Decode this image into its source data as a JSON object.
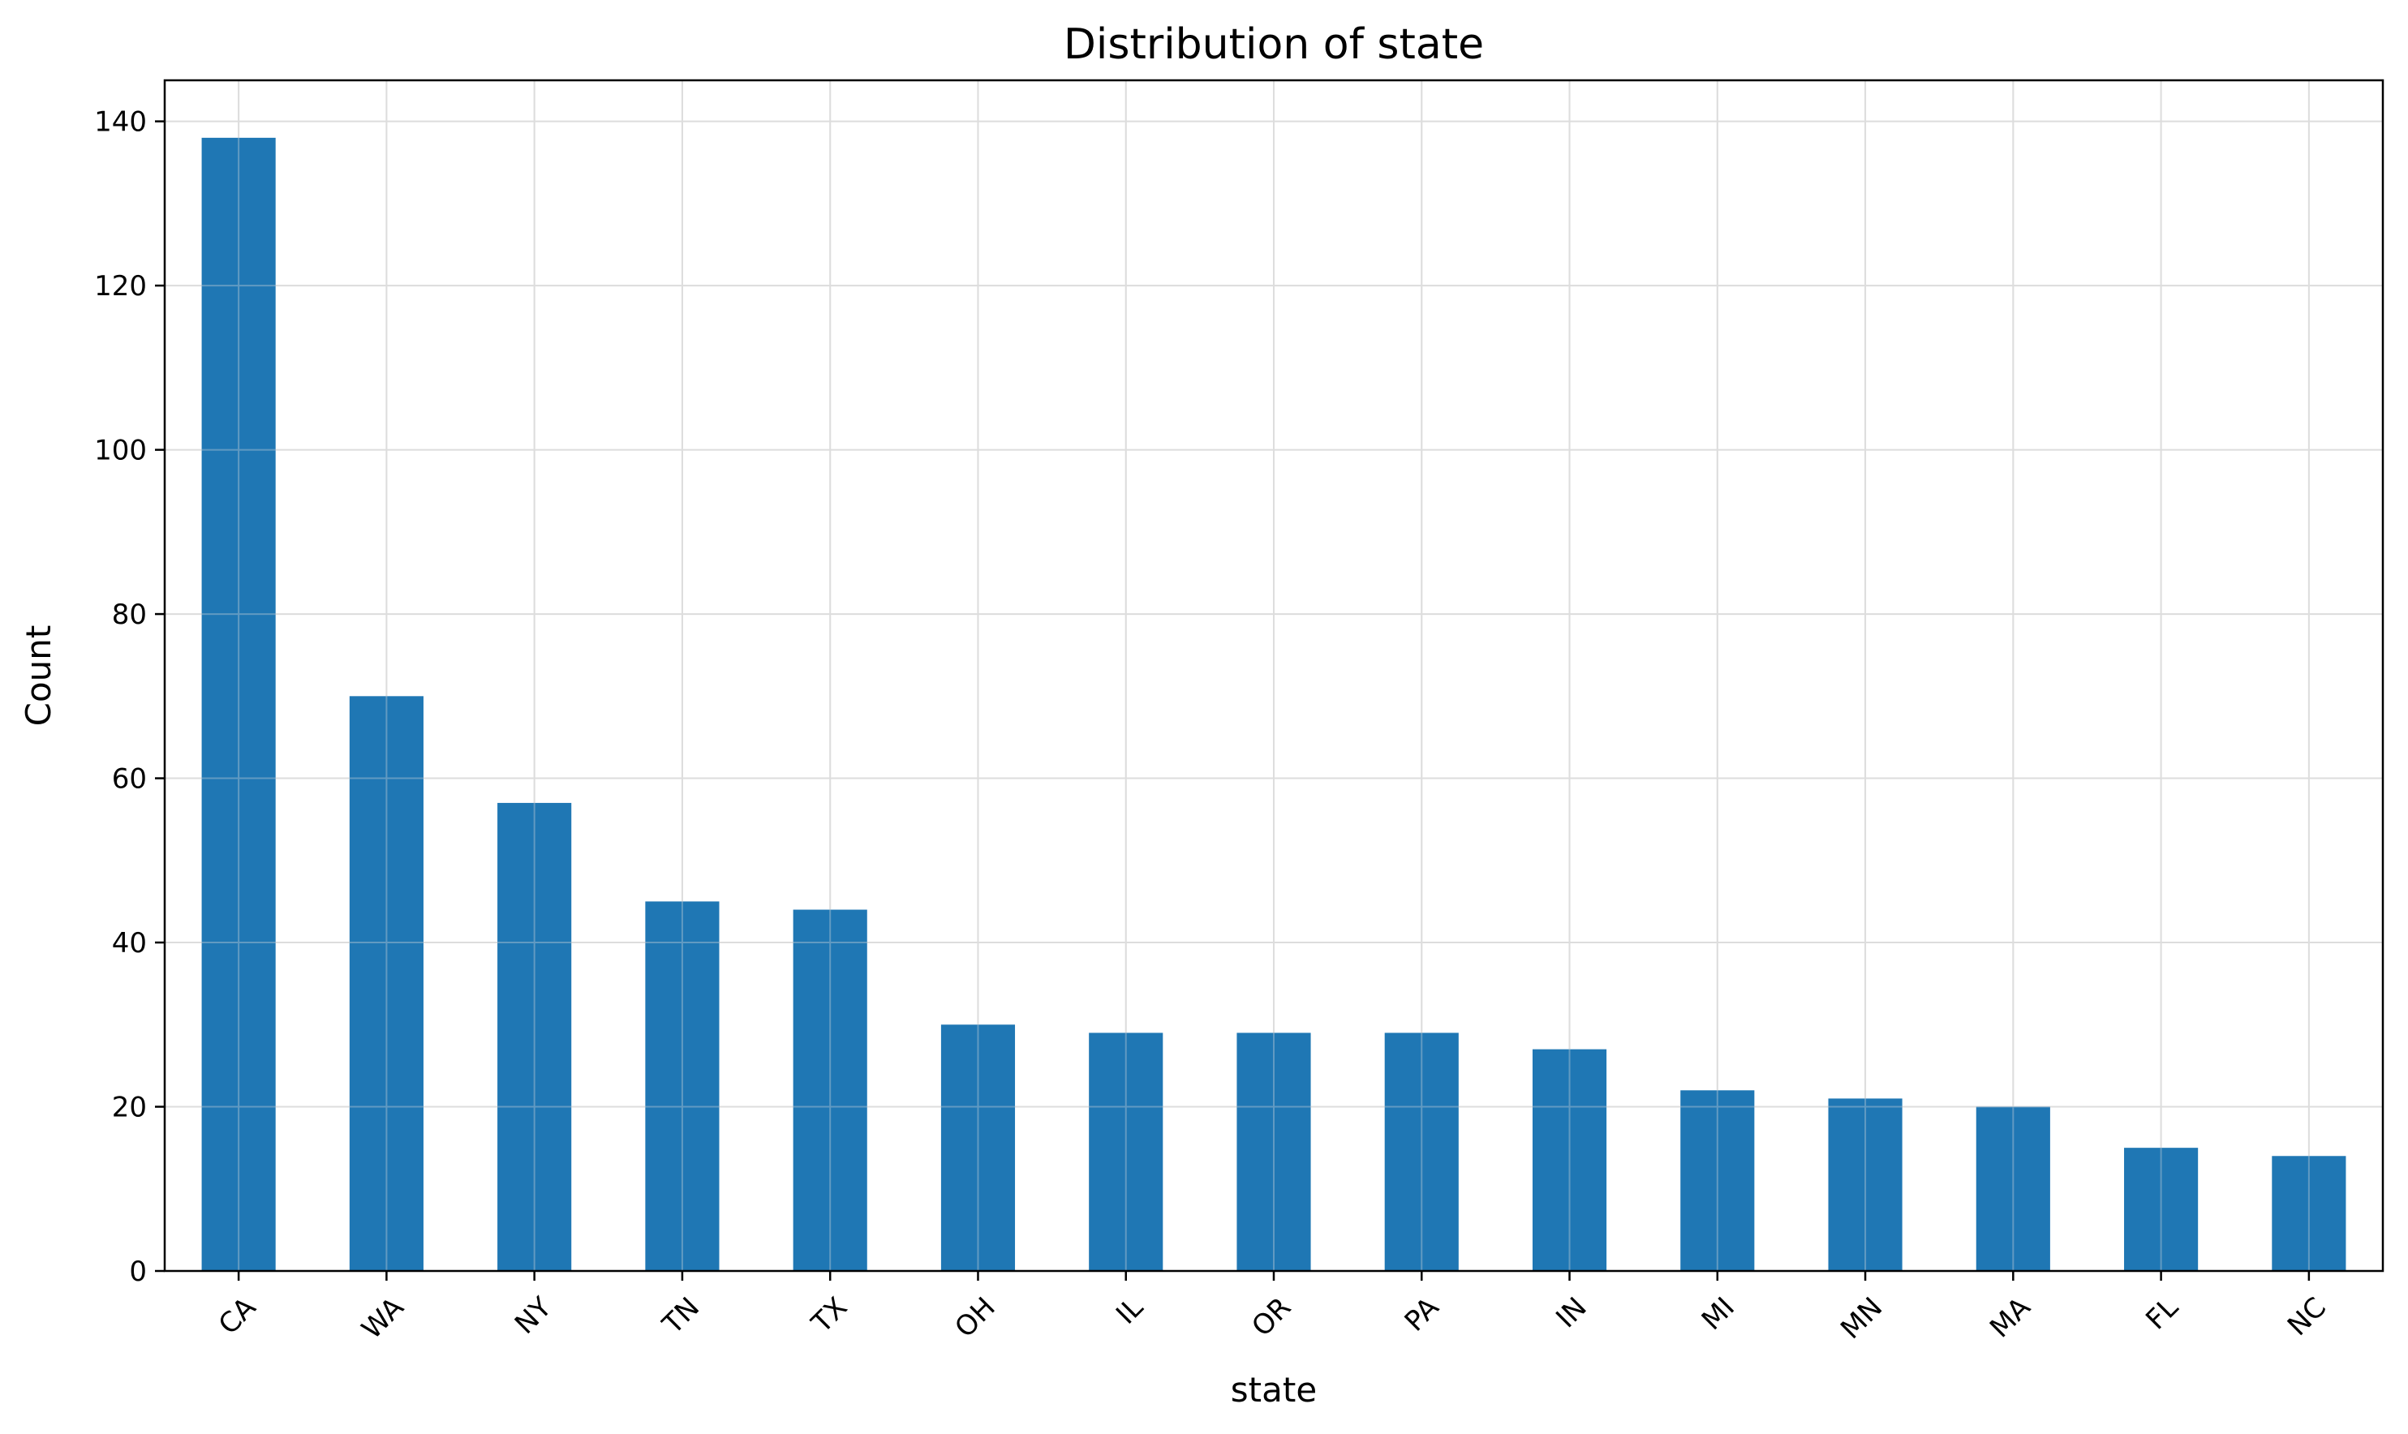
{
  "chart_data": {
    "type": "bar",
    "title": "Distribution of state",
    "xlabel": "state",
    "ylabel": "Count",
    "categories": [
      "CA",
      "WA",
      "NY",
      "TN",
      "TX",
      "OH",
      "IL",
      "OR",
      "PA",
      "IN",
      "MI",
      "MN",
      "MA",
      "FL",
      "NC"
    ],
    "values": [
      138,
      70,
      57,
      45,
      44,
      30,
      29,
      29,
      29,
      27,
      22,
      21,
      20,
      15,
      14
    ],
    "ylim": [
      0,
      145
    ],
    "yticks": [
      "0",
      "20",
      "40",
      "60",
      "80",
      "100",
      "120",
      "140"
    ],
    "grid": true,
    "legend": "none",
    "bar_color": "#1f77b4",
    "grid_color": "#dddddd"
  }
}
